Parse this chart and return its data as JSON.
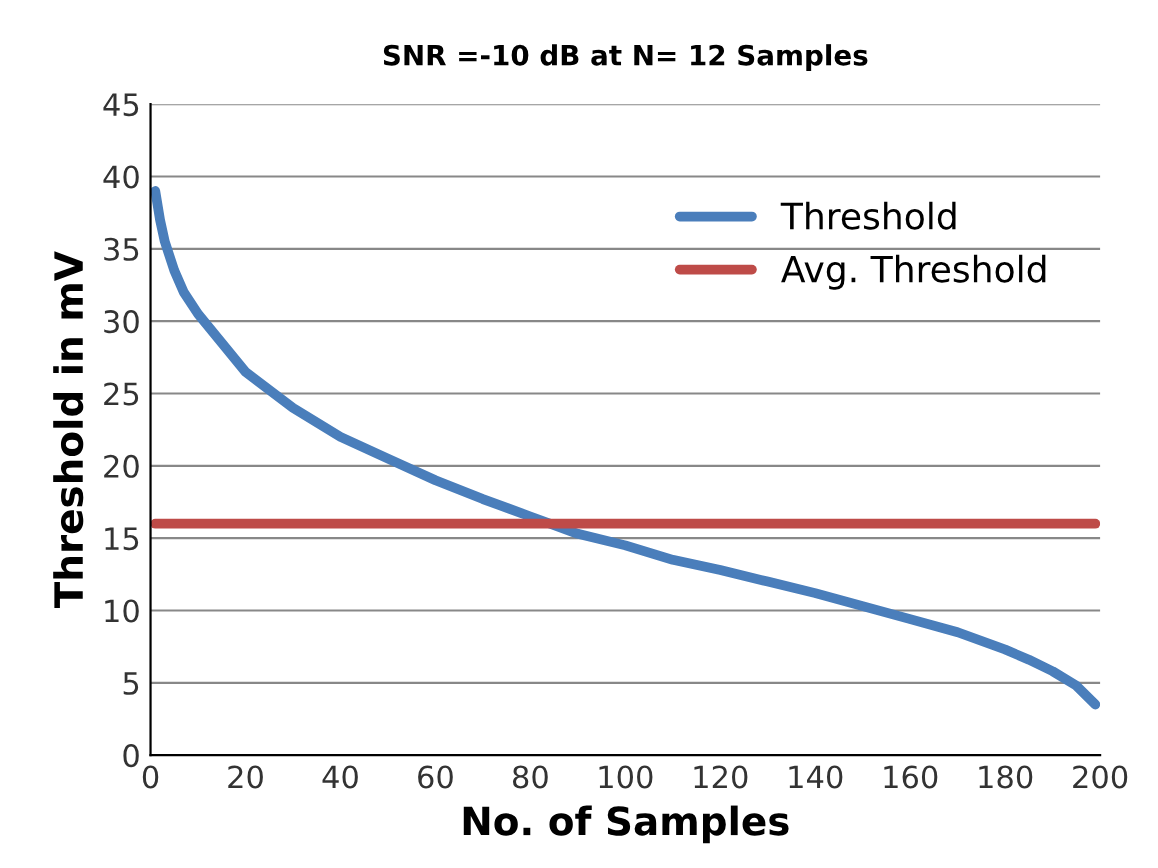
{
  "chart_data": {
    "type": "line",
    "title": "SNR =-10 dB at N= 12 Samples",
    "xlabel": "No. of Samples",
    "ylabel": "Threshold in mV",
    "series": [
      {
        "name": "Threshold",
        "color": "#4a7ebb",
        "x": [
          1,
          2,
          3,
          5,
          7,
          10,
          15,
          20,
          30,
          40,
          50,
          60,
          70,
          80,
          90,
          100,
          110,
          120,
          130,
          140,
          150,
          160,
          170,
          180,
          185,
          190,
          195,
          199
        ],
        "values": [
          39,
          37,
          35.5,
          33.5,
          32,
          30.5,
          28.5,
          26.5,
          24,
          22,
          20.5,
          19,
          17.7,
          16.5,
          15.3,
          14.5,
          13.5,
          12.8,
          12,
          11.2,
          10.3,
          9.4,
          8.5,
          7.3,
          6.6,
          5.8,
          4.8,
          3.5
        ]
      },
      {
        "name": "Avg. Threshold",
        "color": "#be4b48",
        "x": [
          1,
          199
        ],
        "values": [
          16,
          16
        ]
      }
    ],
    "xlim": [
      0,
      200
    ],
    "xticks": [
      0,
      20,
      40,
      60,
      80,
      100,
      120,
      140,
      160,
      180,
      200
    ],
    "ylim": [
      0,
      45
    ],
    "yticks": [
      0,
      5,
      10,
      15,
      20,
      25,
      30,
      35,
      40,
      45
    ],
    "grid": "y",
    "legend": "top right",
    "marker": "none",
    "line_style": "solid"
  }
}
